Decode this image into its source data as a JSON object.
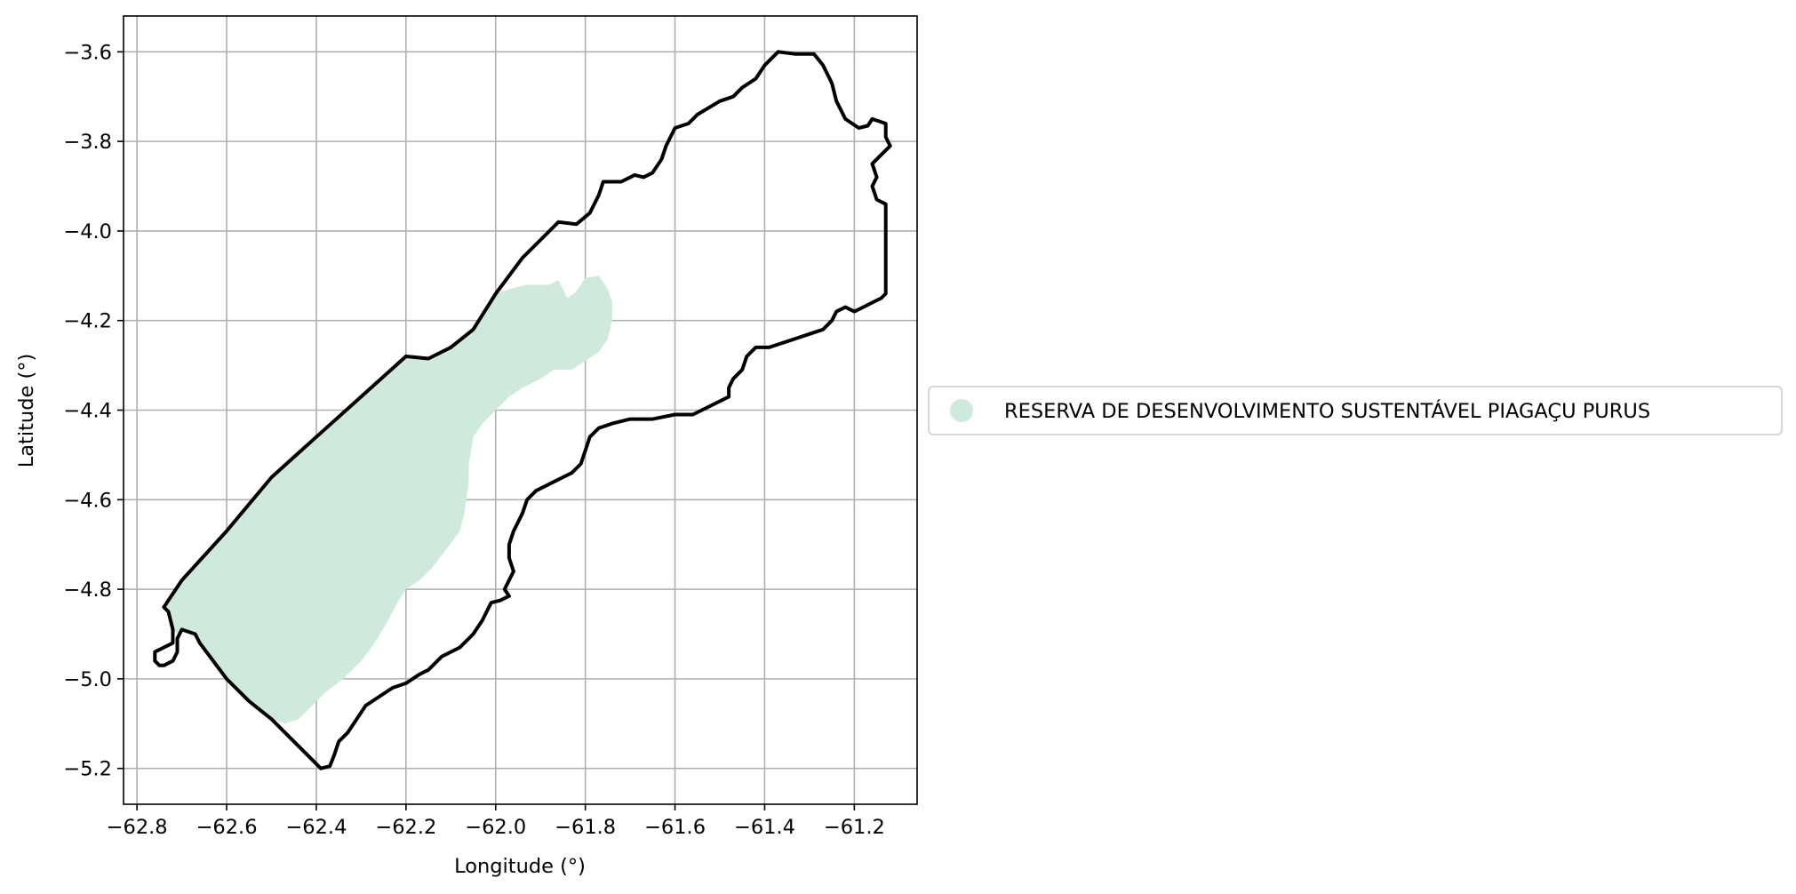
{
  "chart_data": {
    "type": "map",
    "xlabel": "Longitude (°)",
    "ylabel": "Latitude (°)",
    "xlim": [
      -62.83,
      -61.06
    ],
    "ylim": [
      -5.28,
      -3.52
    ],
    "xticks": [
      -62.8,
      -62.6,
      -62.4,
      -62.2,
      -62.0,
      -61.8,
      -61.6,
      -61.4,
      -61.2
    ],
    "xtick_labels": [
      "−62.8",
      "−62.6",
      "−62.4",
      "−62.2",
      "−62.0",
      "−61.8",
      "−61.6",
      "−61.4",
      "−61.2"
    ],
    "yticks": [
      -3.6,
      -3.8,
      -4.0,
      -4.2,
      -4.4,
      -4.6,
      -4.8,
      -5.0,
      -5.2
    ],
    "ytick_labels": [
      "−3.6",
      "−3.8",
      "−4.0",
      "−4.2",
      "−4.4",
      "−4.6",
      "−4.8",
      "−5.0",
      "−5.2"
    ],
    "grid": true,
    "legend_position": "outside-right",
    "legend": [
      {
        "label": "RESERVA DE DESENVOLVIMENTO SUSTENTÁVEL PIAGAÇU PURUS",
        "color": "#cfeadc"
      }
    ],
    "boundary": {
      "color": "#000000",
      "coords": [
        [
          -62.5,
          -4.55
        ],
        [
          -62.4,
          -4.46
        ],
        [
          -62.3,
          -4.37
        ],
        [
          -62.2,
          -4.28
        ],
        [
          -62.15,
          -4.285
        ],
        [
          -62.1,
          -4.26
        ],
        [
          -62.05,
          -4.22
        ],
        [
          -62.0,
          -4.14
        ],
        [
          -61.94,
          -4.06
        ],
        [
          -61.9,
          -4.02
        ],
        [
          -61.86,
          -3.98
        ],
        [
          -61.82,
          -3.985
        ],
        [
          -61.79,
          -3.96
        ],
        [
          -61.77,
          -3.92
        ],
        [
          -61.76,
          -3.89
        ],
        [
          -61.74,
          -3.89
        ],
        [
          -61.72,
          -3.89
        ],
        [
          -61.69,
          -3.875
        ],
        [
          -61.67,
          -3.88
        ],
        [
          -61.65,
          -3.87
        ],
        [
          -61.63,
          -3.84
        ],
        [
          -61.62,
          -3.81
        ],
        [
          -61.61,
          -3.79
        ],
        [
          -61.6,
          -3.77
        ],
        [
          -61.57,
          -3.76
        ],
        [
          -61.55,
          -3.74
        ],
        [
          -61.5,
          -3.71
        ],
        [
          -61.47,
          -3.7
        ],
        [
          -61.45,
          -3.68
        ],
        [
          -61.42,
          -3.66
        ],
        [
          -61.4,
          -3.63
        ],
        [
          -61.37,
          -3.6
        ],
        [
          -61.33,
          -3.605
        ],
        [
          -61.29,
          -3.605
        ],
        [
          -61.27,
          -3.63
        ],
        [
          -61.25,
          -3.67
        ],
        [
          -61.24,
          -3.71
        ],
        [
          -61.22,
          -3.75
        ],
        [
          -61.19,
          -3.77
        ],
        [
          -61.17,
          -3.765
        ],
        [
          -61.16,
          -3.75
        ],
        [
          -61.13,
          -3.76
        ],
        [
          -61.13,
          -3.79
        ],
        [
          -61.12,
          -3.81
        ],
        [
          -61.14,
          -3.83
        ],
        [
          -61.16,
          -3.85
        ],
        [
          -61.15,
          -3.88
        ],
        [
          -61.16,
          -3.9
        ],
        [
          -61.15,
          -3.93
        ],
        [
          -61.13,
          -3.94
        ],
        [
          -61.13,
          -4.04
        ],
        [
          -61.13,
          -4.14
        ],
        [
          -61.14,
          -4.15
        ],
        [
          -61.16,
          -4.16
        ],
        [
          -61.18,
          -4.17
        ],
        [
          -61.2,
          -4.18
        ],
        [
          -61.22,
          -4.17
        ],
        [
          -61.24,
          -4.18
        ],
        [
          -61.25,
          -4.2
        ],
        [
          -61.27,
          -4.22
        ],
        [
          -61.3,
          -4.23
        ],
        [
          -61.33,
          -4.24
        ],
        [
          -61.36,
          -4.25
        ],
        [
          -61.39,
          -4.26
        ],
        [
          -61.42,
          -4.26
        ],
        [
          -61.44,
          -4.28
        ],
        [
          -61.45,
          -4.31
        ],
        [
          -61.47,
          -4.33
        ],
        [
          -61.48,
          -4.35
        ],
        [
          -61.48,
          -4.37
        ],
        [
          -61.52,
          -4.39
        ],
        [
          -61.56,
          -4.41
        ],
        [
          -61.6,
          -4.41
        ],
        [
          -61.65,
          -4.42
        ],
        [
          -61.7,
          -4.42
        ],
        [
          -61.74,
          -4.43
        ],
        [
          -61.77,
          -4.44
        ],
        [
          -61.79,
          -4.46
        ],
        [
          -61.8,
          -4.49
        ],
        [
          -61.81,
          -4.52
        ],
        [
          -61.83,
          -4.54
        ],
        [
          -61.86,
          -4.555
        ],
        [
          -61.89,
          -4.57
        ],
        [
          -61.91,
          -4.58
        ],
        [
          -61.93,
          -4.6
        ],
        [
          -61.94,
          -4.63
        ],
        [
          -61.95,
          -4.65
        ],
        [
          -61.96,
          -4.67
        ],
        [
          -61.97,
          -4.7
        ],
        [
          -61.97,
          -4.73
        ],
        [
          -61.96,
          -4.76
        ],
        [
          -61.98,
          -4.8
        ],
        [
          -61.97,
          -4.815
        ],
        [
          -61.99,
          -4.825
        ],
        [
          -62.01,
          -4.83
        ],
        [
          -62.03,
          -4.87
        ],
        [
          -62.05,
          -4.9
        ],
        [
          -62.08,
          -4.93
        ],
        [
          -62.12,
          -4.95
        ],
        [
          -62.15,
          -4.98
        ],
        [
          -62.17,
          -4.99
        ],
        [
          -62.2,
          -5.01
        ],
        [
          -62.23,
          -5.02
        ],
        [
          -62.26,
          -5.04
        ],
        [
          -62.29,
          -5.06
        ],
        [
          -62.31,
          -5.09
        ],
        [
          -62.33,
          -5.12
        ],
        [
          -62.35,
          -5.14
        ],
        [
          -62.36,
          -5.17
        ],
        [
          -62.37,
          -5.195
        ],
        [
          -62.39,
          -5.2
        ],
        [
          -62.42,
          -5.17
        ],
        [
          -62.46,
          -5.13
        ],
        [
          -62.5,
          -5.09
        ],
        [
          -62.55,
          -5.05
        ],
        [
          -62.6,
          -5.0
        ],
        [
          -62.63,
          -4.96
        ],
        [
          -62.66,
          -4.92
        ],
        [
          -62.67,
          -4.9
        ],
        [
          -62.7,
          -4.89
        ],
        [
          -62.71,
          -4.91
        ],
        [
          -62.71,
          -4.94
        ],
        [
          -62.72,
          -4.96
        ],
        [
          -62.74,
          -4.97
        ],
        [
          -62.75,
          -4.97
        ],
        [
          -62.76,
          -4.96
        ],
        [
          -62.76,
          -4.94
        ],
        [
          -62.74,
          -4.93
        ],
        [
          -62.72,
          -4.92
        ],
        [
          -62.72,
          -4.89
        ],
        [
          -62.73,
          -4.85
        ],
        [
          -62.74,
          -4.84
        ],
        [
          -62.7,
          -4.78
        ],
        [
          -62.6,
          -4.67
        ],
        [
          -62.5,
          -4.55
        ]
      ]
    },
    "regions": [
      {
        "name": "RESERVA DE DESENVOLVIMENTO SUSTENTÁVEL PIAGAÇU PURUS",
        "color": "#cfeadc",
        "coords": [
          [
            -62.5,
            -4.55
          ],
          [
            -62.4,
            -4.46
          ],
          [
            -62.3,
            -4.37
          ],
          [
            -62.2,
            -4.28
          ],
          [
            -62.15,
            -4.285
          ],
          [
            -62.1,
            -4.26
          ],
          [
            -62.05,
            -4.22
          ],
          [
            -62.0,
            -4.14
          ],
          [
            -61.97,
            -4.13
          ],
          [
            -61.93,
            -4.12
          ],
          [
            -61.88,
            -4.12
          ],
          [
            -61.86,
            -4.11
          ],
          [
            -61.85,
            -4.13
          ],
          [
            -61.84,
            -4.15
          ],
          [
            -61.82,
            -4.135
          ],
          [
            -61.8,
            -4.105
          ],
          [
            -61.77,
            -4.1
          ],
          [
            -61.75,
            -4.13
          ],
          [
            -61.74,
            -4.16
          ],
          [
            -61.74,
            -4.2
          ],
          [
            -61.75,
            -4.24
          ],
          [
            -61.77,
            -4.27
          ],
          [
            -61.8,
            -4.29
          ],
          [
            -61.83,
            -4.31
          ],
          [
            -61.87,
            -4.31
          ],
          [
            -61.9,
            -4.33
          ],
          [
            -61.94,
            -4.35
          ],
          [
            -61.97,
            -4.37
          ],
          [
            -62.0,
            -4.4
          ],
          [
            -62.03,
            -4.43
          ],
          [
            -62.05,
            -4.46
          ],
          [
            -62.06,
            -4.52
          ],
          [
            -62.06,
            -4.56
          ],
          [
            -62.07,
            -4.63
          ],
          [
            -62.08,
            -4.67
          ],
          [
            -62.11,
            -4.71
          ],
          [
            -62.14,
            -4.75
          ],
          [
            -62.17,
            -4.78
          ],
          [
            -62.2,
            -4.8
          ],
          [
            -62.22,
            -4.83
          ],
          [
            -62.24,
            -4.87
          ],
          [
            -62.27,
            -4.92
          ],
          [
            -62.3,
            -4.96
          ],
          [
            -62.34,
            -5.0
          ],
          [
            -62.38,
            -5.03
          ],
          [
            -62.41,
            -5.06
          ],
          [
            -62.44,
            -5.09
          ],
          [
            -62.47,
            -5.1
          ],
          [
            -62.5,
            -5.09
          ],
          [
            -62.55,
            -5.05
          ],
          [
            -62.6,
            -5.0
          ],
          [
            -62.63,
            -4.96
          ],
          [
            -62.66,
            -4.92
          ],
          [
            -62.67,
            -4.9
          ],
          [
            -62.7,
            -4.89
          ],
          [
            -62.71,
            -4.9
          ],
          [
            -62.72,
            -4.89
          ],
          [
            -62.73,
            -4.85
          ],
          [
            -62.74,
            -4.84
          ],
          [
            -62.7,
            -4.78
          ],
          [
            -62.6,
            -4.67
          ],
          [
            -62.5,
            -4.55
          ]
        ]
      }
    ]
  }
}
